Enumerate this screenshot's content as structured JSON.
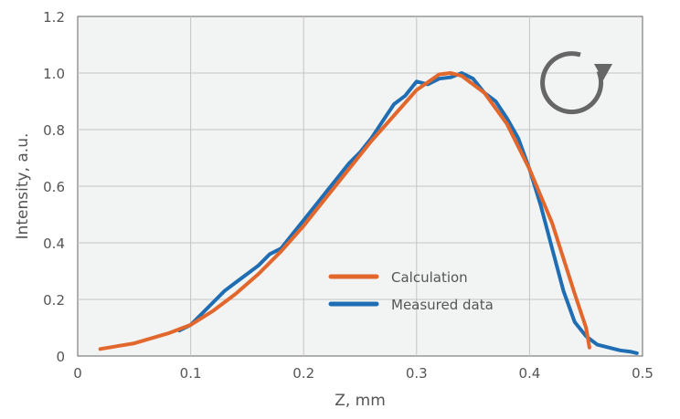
{
  "chart_data": {
    "type": "line",
    "title": "",
    "xlabel": "Z, mm",
    "ylabel": "Intensity, a.u.",
    "xlim": [
      0,
      0.5
    ],
    "ylim": [
      0,
      1.2
    ],
    "xticks": [
      "0",
      "0.1",
      "0.2",
      "0.3",
      "0.4",
      "0.5"
    ],
    "xtick_values": [
      0,
      0.1,
      0.2,
      0.3,
      0.4,
      0.5
    ],
    "yticks": [
      "0",
      "0.2",
      "0.4",
      "0.6",
      "0.8",
      "1.0",
      "1.2"
    ],
    "ytick_values": [
      0,
      0.2,
      0.4,
      0.6,
      0.8,
      1.0,
      1.2
    ],
    "grid": true,
    "legend_placement": "center-right-bottom",
    "icon": "rotate-clockwise-icon",
    "series": [
      {
        "name": "Calculation",
        "color": "#E2672C",
        "x": [
          0.02,
          0.05,
          0.08,
          0.1,
          0.12,
          0.14,
          0.16,
          0.18,
          0.2,
          0.22,
          0.24,
          0.26,
          0.28,
          0.3,
          0.32,
          0.33,
          0.34,
          0.36,
          0.38,
          0.4,
          0.42,
          0.44,
          0.45,
          0.453
        ],
        "y": [
          0.025,
          0.045,
          0.08,
          0.11,
          0.16,
          0.22,
          0.29,
          0.37,
          0.46,
          0.56,
          0.66,
          0.76,
          0.85,
          0.94,
          0.995,
          1.0,
          0.99,
          0.93,
          0.82,
          0.66,
          0.47,
          0.22,
          0.1,
          0.03
        ]
      },
      {
        "name": "Measured data",
        "color": "#1F6DB3",
        "x": [
          0.09,
          0.1,
          0.11,
          0.12,
          0.13,
          0.14,
          0.15,
          0.16,
          0.17,
          0.18,
          0.19,
          0.2,
          0.21,
          0.22,
          0.23,
          0.24,
          0.25,
          0.26,
          0.27,
          0.28,
          0.29,
          0.3,
          0.31,
          0.32,
          0.33,
          0.34,
          0.35,
          0.36,
          0.37,
          0.38,
          0.39,
          0.4,
          0.41,
          0.42,
          0.43,
          0.44,
          0.45,
          0.46,
          0.47,
          0.48,
          0.49,
          0.495
        ],
        "y": [
          0.09,
          0.11,
          0.15,
          0.19,
          0.23,
          0.26,
          0.29,
          0.32,
          0.36,
          0.38,
          0.43,
          0.48,
          0.53,
          0.58,
          0.63,
          0.68,
          0.72,
          0.77,
          0.83,
          0.89,
          0.92,
          0.97,
          0.96,
          0.98,
          0.985,
          1.0,
          0.98,
          0.93,
          0.9,
          0.84,
          0.77,
          0.66,
          0.53,
          0.38,
          0.23,
          0.12,
          0.07,
          0.04,
          0.03,
          0.02,
          0.015,
          0.01
        ]
      }
    ]
  }
}
